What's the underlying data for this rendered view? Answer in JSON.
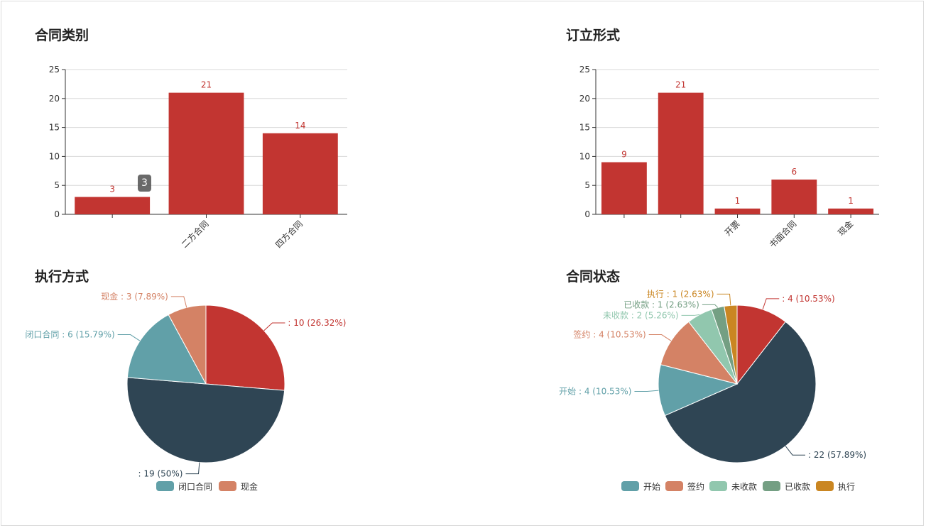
{
  "colors": {
    "red": "#c23531",
    "navy": "#2f4554",
    "teal": "#61a0a8",
    "salmon": "#d48265",
    "mint": "#91c7ae",
    "green": "#749f83",
    "orange": "#ca8622"
  },
  "tooltip": {
    "value": "3"
  },
  "chart_data": [
    {
      "id": "c1",
      "type": "bar",
      "title": "合同类别",
      "categories": [
        "",
        "二方合同",
        "四方合同"
      ],
      "values": [
        3,
        21,
        14
      ],
      "ylim": [
        0,
        25
      ],
      "yticks": [
        0,
        5,
        10,
        15,
        20,
        25
      ],
      "grid": true
    },
    {
      "id": "c2",
      "type": "bar",
      "title": "订立形式",
      "categories": [
        "",
        "",
        "开票",
        "书面合同",
        "现金"
      ],
      "values": [
        9,
        21,
        1,
        6,
        1
      ],
      "ylim": [
        0,
        25
      ],
      "yticks": [
        0,
        5,
        10,
        15,
        20,
        25
      ],
      "grid": true
    },
    {
      "id": "c3",
      "type": "pie",
      "title": "执行方式",
      "slices": [
        {
          "name": "",
          "value": 10,
          "label": ": 10 (26.32%)",
          "color": "#c23531"
        },
        {
          "name": "",
          "value": 19,
          "label": ": 19 (50%)",
          "color": "#2f4554"
        },
        {
          "name": "闭口合同",
          "value": 6,
          "label": "闭口合同 : 6 (15.79%)",
          "color": "#61a0a8"
        },
        {
          "name": "现金",
          "value": 3,
          "label": "现金 : 3 (7.89%)",
          "color": "#d48265"
        }
      ],
      "legend": [
        "闭口合同",
        "现金"
      ],
      "legend_position": "bottom"
    },
    {
      "id": "c4",
      "type": "pie",
      "title": "合同状态",
      "slices": [
        {
          "name": "",
          "value": 4,
          "label": ": 4 (10.53%)",
          "color": "#c23531"
        },
        {
          "name": "",
          "value": 22,
          "label": ": 22 (57.89%)",
          "color": "#2f4554"
        },
        {
          "name": "开始",
          "value": 4,
          "label": "开始 : 4 (10.53%)",
          "color": "#61a0a8"
        },
        {
          "name": "签约",
          "value": 4,
          "label": "签约 : 4 (10.53%)",
          "color": "#d48265"
        },
        {
          "name": "未收款",
          "value": 2,
          "label": "未收款 : 2 (5.26%)",
          "color": "#91c7ae"
        },
        {
          "name": "已收款",
          "value": 1,
          "label": "已收款 : 1 (2.63%)",
          "color": "#749f83"
        },
        {
          "name": "执行",
          "value": 1,
          "label": "执行 : 1 (2.63%)",
          "color": "#ca8622"
        }
      ],
      "legend": [
        "开始",
        "签约",
        "未收款",
        "已收款",
        "执行"
      ],
      "legend_position": "bottom"
    }
  ]
}
